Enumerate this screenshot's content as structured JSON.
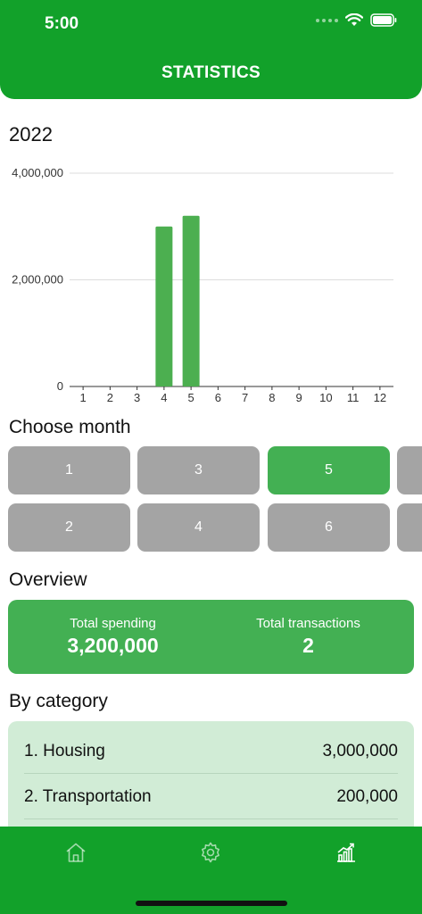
{
  "status_bar": {
    "time": "5:00"
  },
  "header": {
    "title": "STATISTICS"
  },
  "chart_section": {
    "year": "2022"
  },
  "chart_data": {
    "type": "bar",
    "title": "",
    "xlabel": "",
    "ylabel": "",
    "categories": [
      "1",
      "2",
      "3",
      "4",
      "5",
      "6",
      "7",
      "8",
      "9",
      "10",
      "11",
      "12"
    ],
    "values": [
      0,
      0,
      0,
      3000000,
      3200000,
      0,
      0,
      0,
      0,
      0,
      0,
      0
    ],
    "ylim": [
      0,
      4000000
    ],
    "yticks": [
      "0",
      "2,000,000",
      "4,000,000"
    ],
    "grid": true,
    "bar_color": "#4caf50"
  },
  "month_picker": {
    "title": "Choose month",
    "buttons": [
      {
        "label": "1",
        "selected": false
      },
      {
        "label": "3",
        "selected": false
      },
      {
        "label": "5",
        "selected": true
      },
      {
        "label": "2",
        "selected": false
      },
      {
        "label": "4",
        "selected": false
      },
      {
        "label": "6",
        "selected": false
      }
    ]
  },
  "overview": {
    "title": "Overview",
    "total_spending_label": "Total spending",
    "total_spending_value": "3,200,000",
    "total_transactions_label": "Total transactions",
    "total_transactions_value": "2"
  },
  "by_category": {
    "title": "By category",
    "items": [
      {
        "name": "1. Housing",
        "amount": "3,000,000"
      },
      {
        "name": "2. Transportation",
        "amount": "200,000"
      }
    ]
  },
  "tab_bar": {
    "items": [
      {
        "icon": "home-icon"
      },
      {
        "icon": "gear-icon"
      },
      {
        "icon": "chart-icon",
        "active": true
      }
    ]
  },
  "colors": {
    "brand_green": "#12a12a",
    "accent_green": "#43b053",
    "light_green": "#d1ecd6",
    "unselected_gray": "#a4a4a4"
  }
}
